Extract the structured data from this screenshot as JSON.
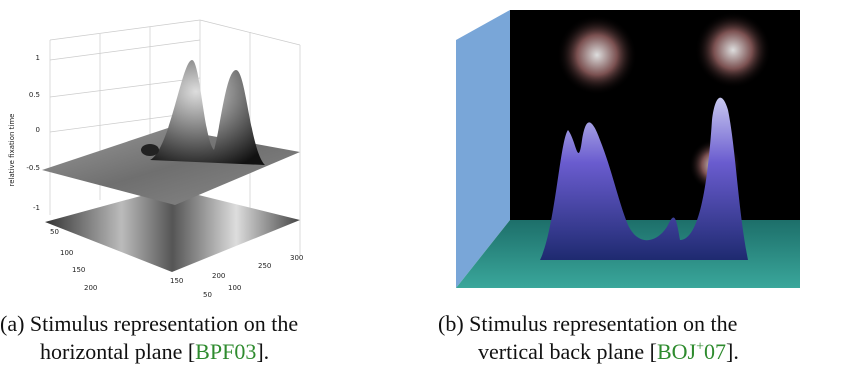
{
  "figures": [
    {
      "label": "(a)",
      "caption_first": "Stimulus representation on the",
      "caption_second": "horizontal plane [",
      "citation": "BPF03",
      "caption_end": "].",
      "plot": {
        "z_ticks": [
          1,
          0.5,
          0,
          -0.5,
          -1
        ],
        "z_label": "relative fixation time",
        "y_ticks": [
          50,
          100,
          150,
          200
        ],
        "x_ticks": [
          50,
          100,
          150,
          200,
          250,
          300
        ]
      }
    },
    {
      "label": "(b)",
      "caption_first": "Stimulus representation on the",
      "caption_second": "vertical back plane [",
      "citation": "BOJ",
      "citation_sup": "+",
      "citation_tail": "07",
      "caption_end": "]."
    }
  ]
}
